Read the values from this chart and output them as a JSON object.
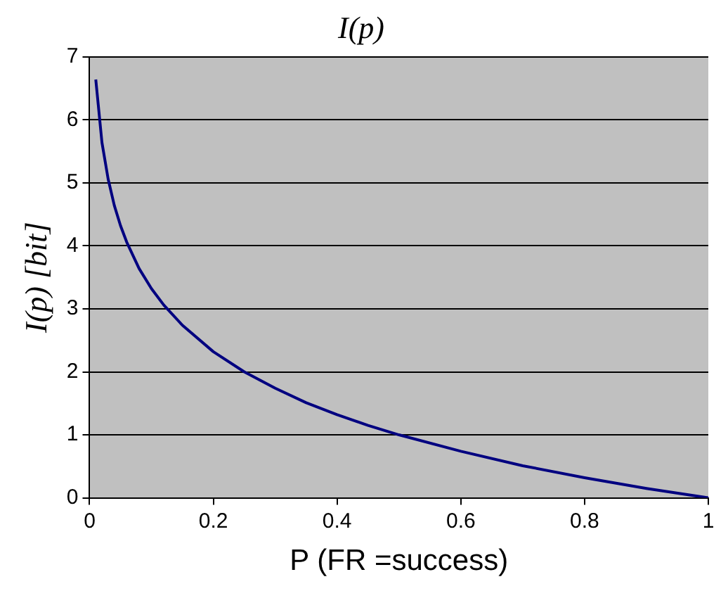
{
  "chart_data": {
    "type": "line",
    "title": "I(p)",
    "xlabel": "P (FR =success)",
    "ylabel": "I(p) [bit]",
    "x": [
      0.01,
      0.02,
      0.03,
      0.04,
      0.05,
      0.06,
      0.08,
      0.1,
      0.12,
      0.15,
      0.2,
      0.25,
      0.3,
      0.35,
      0.4,
      0.45,
      0.5,
      0.6,
      0.7,
      0.8,
      0.9,
      1.0
    ],
    "series": [
      {
        "color": "#000080",
        "values": [
          6.64,
          5.64,
          5.06,
          4.64,
          4.32,
          4.06,
          3.64,
          3.32,
          3.06,
          2.74,
          2.32,
          2.0,
          1.74,
          1.51,
          1.32,
          1.15,
          1.0,
          0.74,
          0.51,
          0.32,
          0.15,
          0
        ]
      }
    ],
    "xlim": [
      0,
      1
    ],
    "xticks": [
      0,
      0.2,
      0.4,
      0.6,
      0.8,
      1
    ],
    "ylim": [
      0,
      7
    ],
    "yticks": [
      0,
      1,
      2,
      3,
      4,
      5,
      6,
      7
    ],
    "grid": "y",
    "legend": false,
    "marker": "none",
    "line_style": "solid"
  }
}
